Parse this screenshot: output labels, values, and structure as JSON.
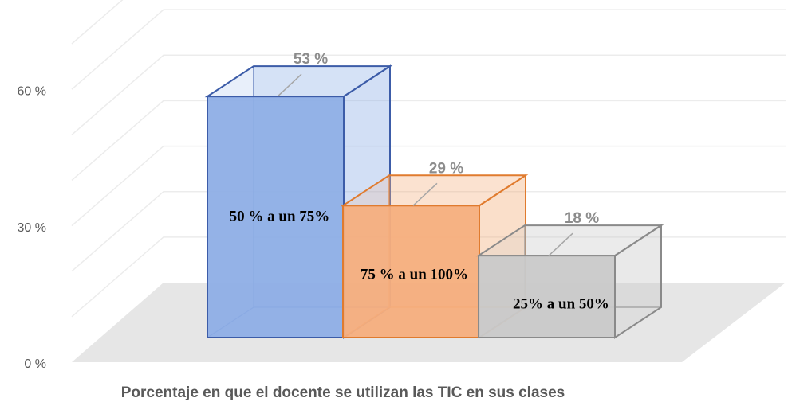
{
  "chart_data": {
    "type": "bar3d",
    "categories": [
      "50 % a un 75%",
      "75 % a un 100%",
      "25% a un 50%"
    ],
    "values": [
      53,
      29,
      18
    ],
    "value_labels": [
      "53 %",
      "29 %",
      "18 %"
    ],
    "colors": [
      "#8eaee6",
      "#f5ae7d",
      "#c9c9c9"
    ],
    "edge_colors": [
      "#3c5ca8",
      "#e07b2e",
      "#8a8a8a"
    ],
    "x_label": "Porcentaje en que el docente se utilizan las TIC en sus clases",
    "ylim": [
      0,
      70
    ],
    "yticks": [
      {
        "value": 0,
        "label": "0 %"
      },
      {
        "value": 30,
        "label": "30 %"
      },
      {
        "value": 60,
        "label": "60 %"
      }
    ],
    "grid_ticks": [
      0,
      10,
      20,
      30,
      40,
      50,
      60,
      70
    ],
    "grid": true
  }
}
